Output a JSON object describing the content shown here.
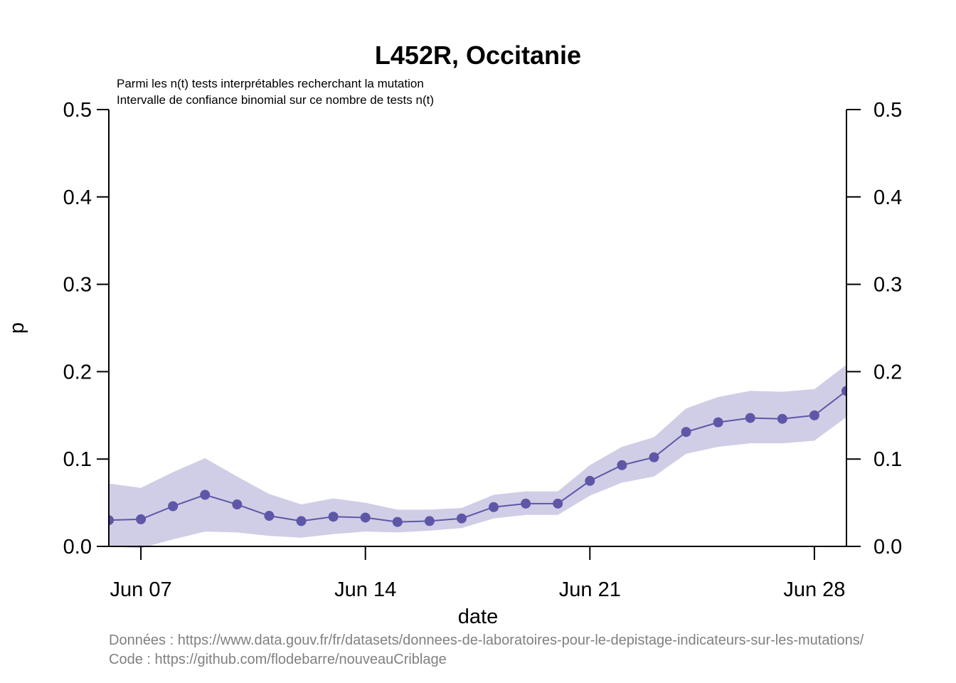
{
  "chart_data": {
    "type": "line",
    "title": "L452R, Occitanie",
    "subtitle_lines": [
      "Parmi les n(t) tests interprétables recherchant la mutation",
      "Intervalle de confiance binomial sur ce nombre de tests n(t)"
    ],
    "xlabel": "date",
    "ylabel": "p",
    "ylim": [
      0,
      0.5
    ],
    "xlim": [
      "2021-06-06",
      "2021-06-29"
    ],
    "y_ticks": [
      "0.0",
      "0.1",
      "0.2",
      "0.3",
      "0.4",
      "0.5"
    ],
    "x_ticks": [
      {
        "date": "2021-06-07",
        "label": "Jun 07"
      },
      {
        "date": "2021-06-14",
        "label": "Jun 14"
      },
      {
        "date": "2021-06-21",
        "label": "Jun 21"
      },
      {
        "date": "2021-06-28",
        "label": "Jun 28"
      }
    ],
    "grid": false,
    "colors": {
      "line": "#5e57a8",
      "band": "#d0cee6"
    },
    "series": [
      {
        "x": [
          "2021-06-06",
          "2021-06-07",
          "2021-06-08",
          "2021-06-09",
          "2021-06-10",
          "2021-06-11",
          "2021-06-12",
          "2021-06-13",
          "2021-06-14",
          "2021-06-15",
          "2021-06-16",
          "2021-06-17",
          "2021-06-18",
          "2021-06-19",
          "2021-06-20",
          "2021-06-21",
          "2021-06-22",
          "2021-06-23",
          "2021-06-24",
          "2021-06-25",
          "2021-06-26",
          "2021-06-27",
          "2021-06-28",
          "2021-06-29"
        ],
        "values": [
          0.03,
          0.031,
          0.046,
          0.059,
          0.048,
          0.035,
          0.029,
          0.034,
          0.033,
          0.028,
          0.029,
          0.032,
          0.045,
          0.049,
          0.049,
          0.075,
          0.093,
          0.102,
          0.131,
          0.142,
          0.147,
          0.146,
          0.15,
          0.178
        ],
        "ci_lower": [
          0.0,
          -0.002,
          0.008,
          0.017,
          0.016,
          0.012,
          0.01,
          0.014,
          0.017,
          0.016,
          0.018,
          0.021,
          0.032,
          0.036,
          0.036,
          0.058,
          0.073,
          0.08,
          0.106,
          0.114,
          0.118,
          0.118,
          0.121,
          0.148
        ],
        "ci_upper": [
          0.072,
          0.067,
          0.085,
          0.101,
          0.08,
          0.06,
          0.048,
          0.055,
          0.05,
          0.042,
          0.042,
          0.044,
          0.059,
          0.063,
          0.063,
          0.093,
          0.114,
          0.125,
          0.158,
          0.171,
          0.178,
          0.177,
          0.18,
          0.208
        ]
      }
    ]
  },
  "footer": {
    "data_line": "Données : https://www.data.gouv.fr/fr/datasets/donnees-de-laboratoires-pour-le-depistage-indicateurs-sur-les-mutations/",
    "code_line": "Code : https://github.com/flodebarre/nouveauCriblage"
  }
}
